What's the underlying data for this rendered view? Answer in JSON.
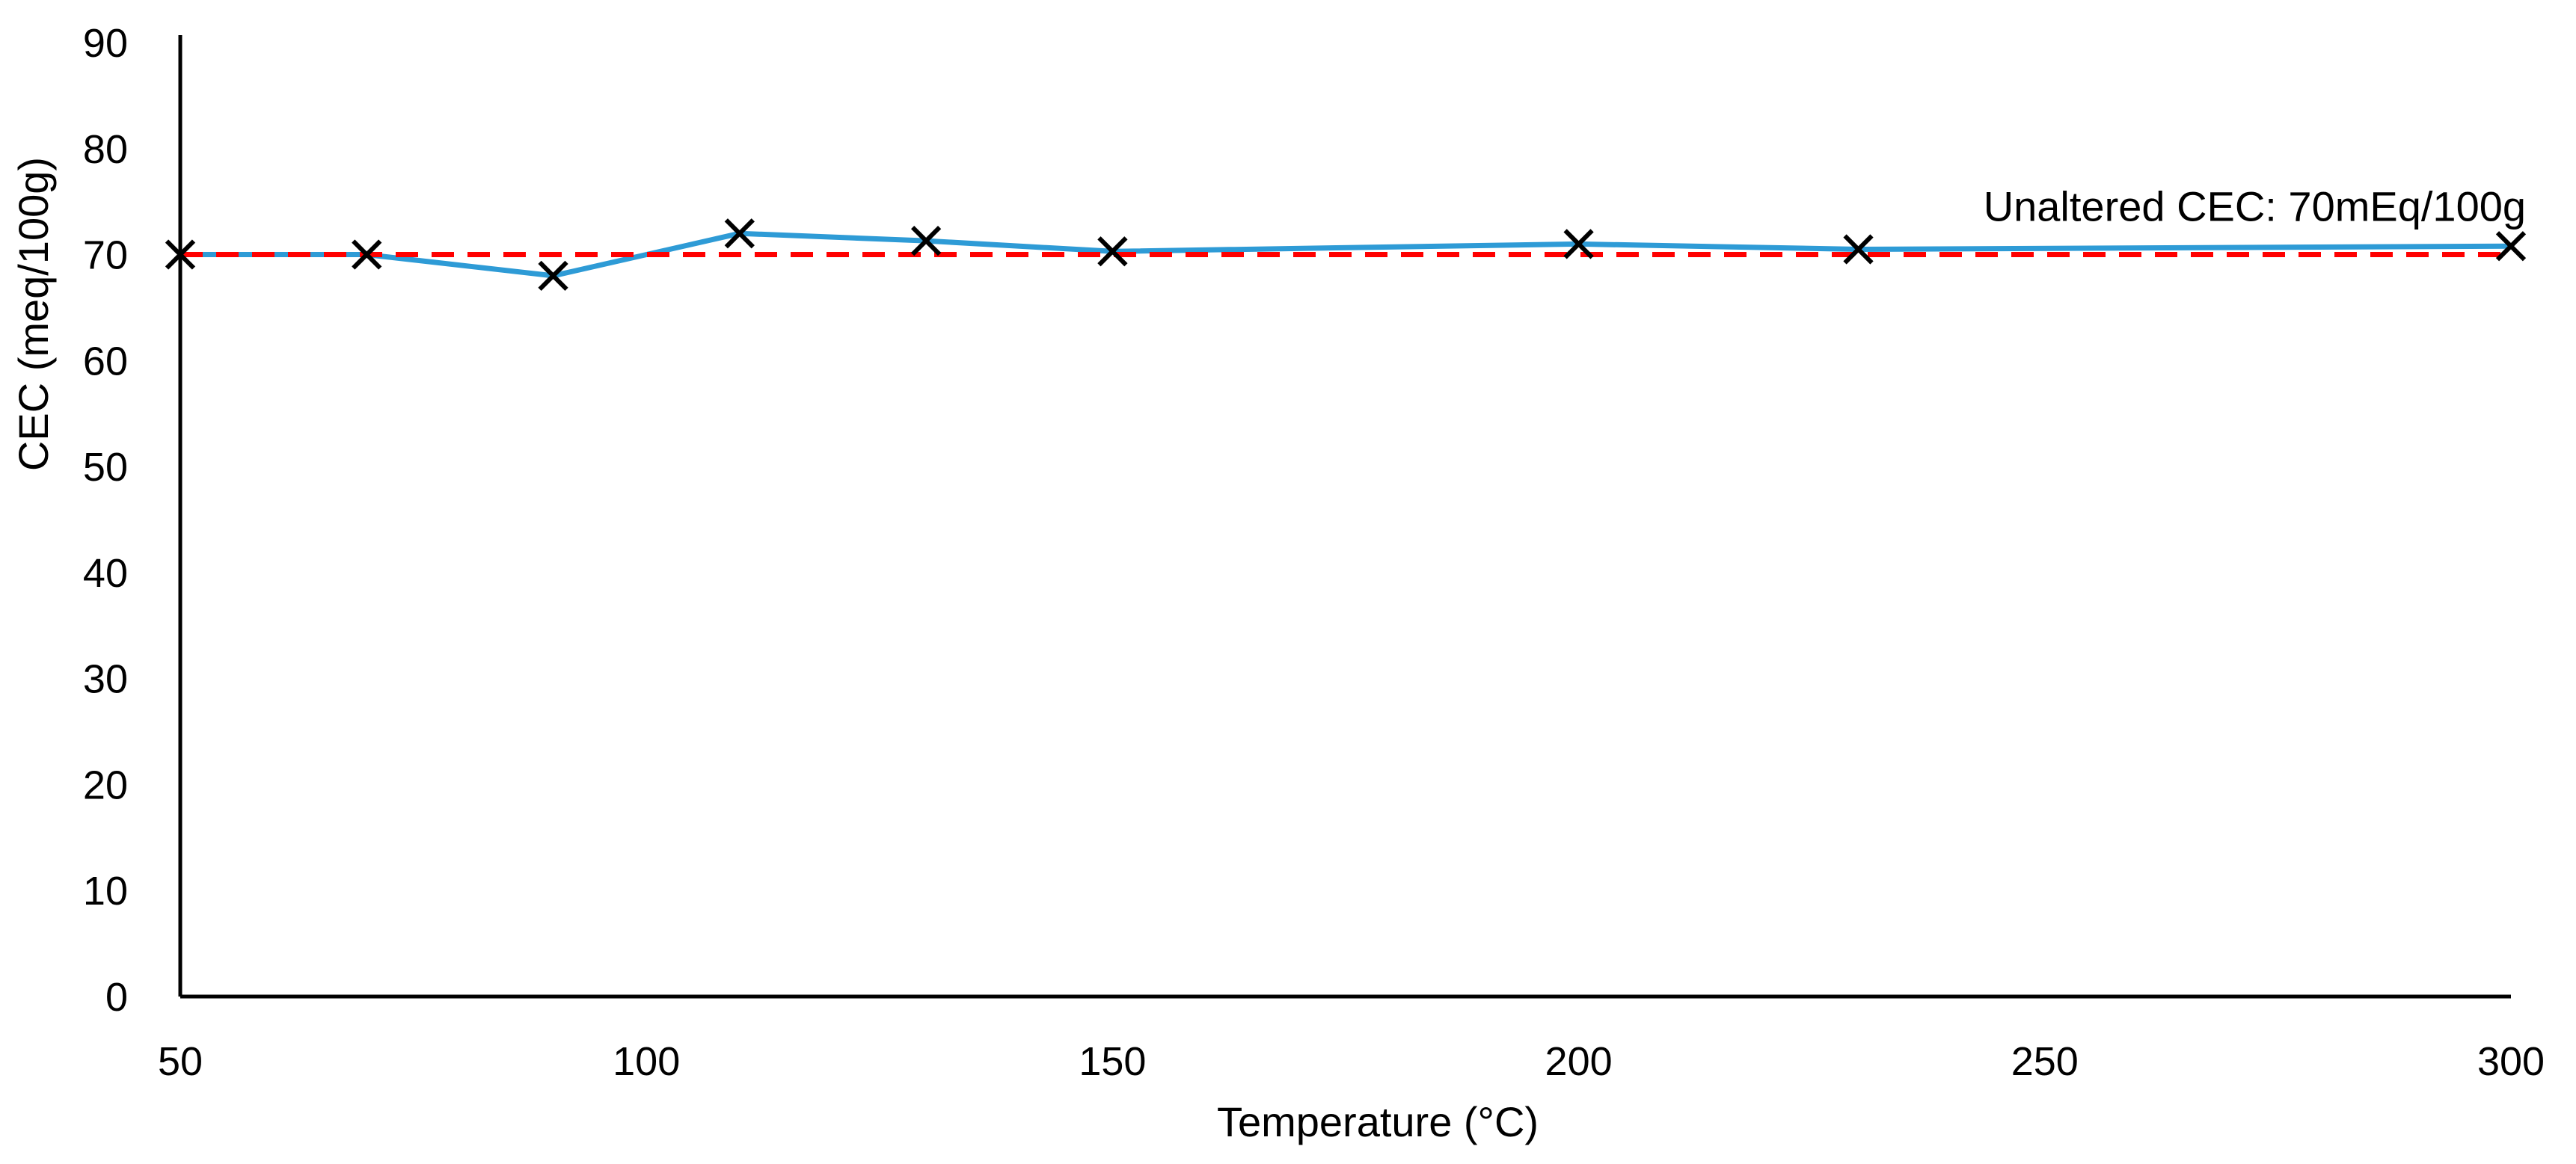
{
  "chart_data": {
    "type": "line",
    "title": "",
    "xlabel": "Temperature (°C)",
    "ylabel": "CEC (meq/100g)",
    "xlim": [
      50,
      300
    ],
    "ylim": [
      0,
      90
    ],
    "x_ticks": [
      50,
      100,
      150,
      200,
      250,
      300
    ],
    "y_ticks": [
      0,
      10,
      20,
      30,
      40,
      50,
      60,
      70,
      80,
      90
    ],
    "grid": false,
    "legend": "none",
    "series": [
      {
        "x": [
          50,
          70,
          90,
          110,
          130,
          150,
          200,
          230,
          300
        ],
        "y": [
          70,
          70,
          68,
          72,
          71.3,
          70.3,
          71,
          70.5,
          70.8
        ],
        "color": "#2E9BD6",
        "marker": "x",
        "marker_color": "#000000"
      }
    ],
    "reference_line": {
      "y": 70,
      "color": "#FF0000",
      "style": "dashed"
    },
    "annotations": [
      {
        "text": "Unaltered CEC: 70mEq/100g",
        "x": 300,
        "y": 70
      }
    ]
  }
}
